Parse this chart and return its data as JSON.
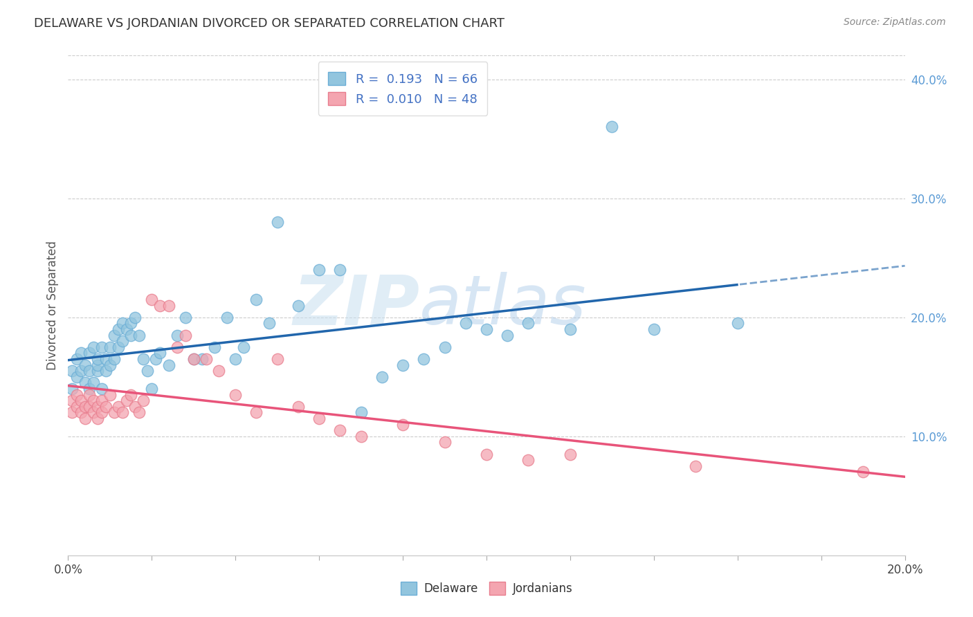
{
  "title": "DELAWARE VS JORDANIAN DIVORCED OR SEPARATED CORRELATION CHART",
  "source": "Source: ZipAtlas.com",
  "ylabel": "Divorced or Separated",
  "xlim": [
    0.0,
    0.2
  ],
  "ylim": [
    0.0,
    0.42
  ],
  "yticks_right": [
    0.1,
    0.2,
    0.3,
    0.4
  ],
  "ytick_right_labels": [
    "10.0%",
    "20.0%",
    "30.0%",
    "40.0%"
  ],
  "delaware_color": "#92c5de",
  "jordanian_color": "#f4a5b0",
  "delaware_edge_color": "#6baed6",
  "jordanian_edge_color": "#e87d8e",
  "delaware_R": 0.193,
  "delaware_N": 66,
  "jordanian_R": 0.01,
  "jordanian_N": 48,
  "delaware_line_color": "#2166ac",
  "jordanian_line_color": "#e8547a",
  "legend_label_delaware": "Delaware",
  "legend_label_jordanian": "Jordanians",
  "watermark": "ZIPatlas",
  "delaware_x": [
    0.001,
    0.001,
    0.002,
    0.002,
    0.003,
    0.003,
    0.004,
    0.004,
    0.005,
    0.005,
    0.005,
    0.006,
    0.006,
    0.007,
    0.007,
    0.007,
    0.008,
    0.008,
    0.009,
    0.009,
    0.01,
    0.01,
    0.011,
    0.011,
    0.012,
    0.012,
    0.013,
    0.013,
    0.014,
    0.015,
    0.015,
    0.016,
    0.017,
    0.018,
    0.019,
    0.02,
    0.021,
    0.022,
    0.024,
    0.026,
    0.028,
    0.03,
    0.032,
    0.035,
    0.038,
    0.04,
    0.042,
    0.045,
    0.048,
    0.05,
    0.055,
    0.06,
    0.065,
    0.07,
    0.075,
    0.08,
    0.085,
    0.09,
    0.095,
    0.1,
    0.105,
    0.11,
    0.12,
    0.13,
    0.14,
    0.16
  ],
  "delaware_y": [
    0.14,
    0.155,
    0.15,
    0.165,
    0.155,
    0.17,
    0.145,
    0.16,
    0.14,
    0.155,
    0.17,
    0.145,
    0.175,
    0.155,
    0.16,
    0.165,
    0.14,
    0.175,
    0.155,
    0.165,
    0.16,
    0.175,
    0.165,
    0.185,
    0.175,
    0.19,
    0.18,
    0.195,
    0.19,
    0.185,
    0.195,
    0.2,
    0.185,
    0.165,
    0.155,
    0.14,
    0.165,
    0.17,
    0.16,
    0.185,
    0.2,
    0.165,
    0.165,
    0.175,
    0.2,
    0.165,
    0.175,
    0.215,
    0.195,
    0.28,
    0.21,
    0.24,
    0.24,
    0.12,
    0.15,
    0.16,
    0.165,
    0.175,
    0.195,
    0.19,
    0.185,
    0.195,
    0.19,
    0.36,
    0.19,
    0.195
  ],
  "jordanian_x": [
    0.001,
    0.001,
    0.002,
    0.002,
    0.003,
    0.003,
    0.004,
    0.004,
    0.005,
    0.005,
    0.006,
    0.006,
    0.007,
    0.007,
    0.008,
    0.008,
    0.009,
    0.01,
    0.011,
    0.012,
    0.013,
    0.014,
    0.015,
    0.016,
    0.017,
    0.018,
    0.02,
    0.022,
    0.024,
    0.026,
    0.028,
    0.03,
    0.033,
    0.036,
    0.04,
    0.045,
    0.05,
    0.055,
    0.06,
    0.065,
    0.07,
    0.08,
    0.09,
    0.1,
    0.11,
    0.12,
    0.15,
    0.19
  ],
  "jordanian_y": [
    0.13,
    0.12,
    0.135,
    0.125,
    0.12,
    0.13,
    0.125,
    0.115,
    0.135,
    0.125,
    0.12,
    0.13,
    0.125,
    0.115,
    0.12,
    0.13,
    0.125,
    0.135,
    0.12,
    0.125,
    0.12,
    0.13,
    0.135,
    0.125,
    0.12,
    0.13,
    0.215,
    0.21,
    0.21,
    0.175,
    0.185,
    0.165,
    0.165,
    0.155,
    0.135,
    0.12,
    0.165,
    0.125,
    0.115,
    0.105,
    0.1,
    0.11,
    0.095,
    0.085,
    0.08,
    0.085,
    0.075,
    0.07
  ]
}
